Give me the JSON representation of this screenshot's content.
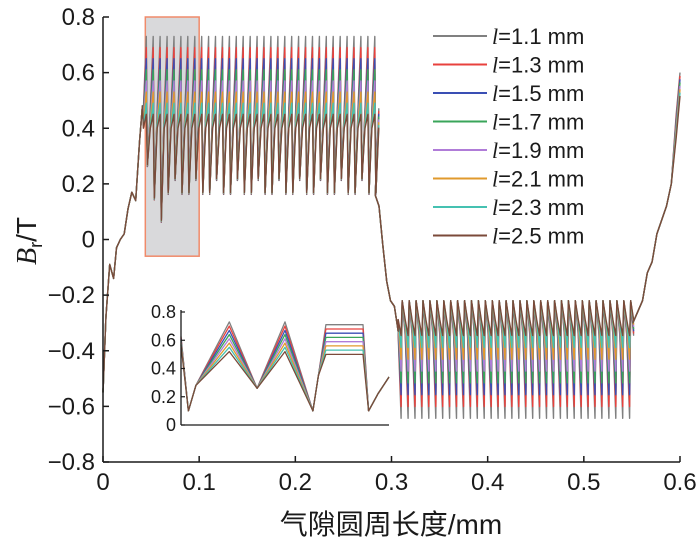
{
  "chart_data": {
    "type": "line",
    "title": "",
    "xlabel": "气隙圆周长度/mm",
    "ylabel_main": "B",
    "ylabel_sub": "r",
    "ylabel_unit": "/T",
    "xlim": [
      0,
      0.6
    ],
    "ylim": [
      -0.8,
      0.8
    ],
    "xticks": [
      0,
      0.1,
      0.2,
      0.3,
      0.4,
      0.5,
      0.6
    ],
    "xtick_labels": [
      "0",
      "0.1",
      "0.2",
      "0.3",
      "0.4",
      "0.5",
      "0.6"
    ],
    "yticks": [
      -0.8,
      -0.6,
      -0.4,
      -0.2,
      0,
      0.2,
      0.4,
      0.6,
      0.8
    ],
    "ytick_labels": [
      "−0.8",
      "−0.6",
      "−0.4",
      "−0.2",
      "0",
      "0.2",
      "0.4",
      "0.6",
      "0.8"
    ],
    "grid": false,
    "legend_position": "top-right",
    "series": [
      {
        "name": "l=1.1 mm",
        "var": "l",
        "text": "=1.1 mm",
        "color": "#808080",
        "dev": 0.26,
        "floor": 0.47
      },
      {
        "name": "l=1.3 mm",
        "var": "l",
        "text": "=1.3 mm",
        "color": "#e8413d",
        "dev": 0.23,
        "floor": 0.46
      },
      {
        "name": "l=1.5 mm",
        "var": "l",
        "text": "=1.5 mm",
        "color": "#3a4fb4",
        "dev": 0.2,
        "floor": 0.45
      },
      {
        "name": "l=1.7 mm",
        "var": "l",
        "text": "=1.7 mm",
        "color": "#3aa55a",
        "dev": 0.17,
        "floor": 0.44
      },
      {
        "name": "l=1.9 mm",
        "var": "l",
        "text": "=1.9 mm",
        "color": "#b07cd8",
        "dev": 0.14,
        "floor": 0.43
      },
      {
        "name": "l=2.1 mm",
        "var": "l",
        "text": "=2.1 mm",
        "color": "#e09a2c",
        "dev": 0.11,
        "floor": 0.42
      },
      {
        "name": "l=2.3 mm",
        "var": "l",
        "text": "=2.3 mm",
        "color": "#45c1b1",
        "dev": 0.08,
        "floor": 0.41
      },
      {
        "name": "l=2.5 mm",
        "var": "l",
        "text": "=2.5 mm",
        "color": "#7b4a3a",
        "dev": 0.05,
        "floor": 0.4
      }
    ],
    "base_curve": {
      "x": [
        0,
        0.003,
        0.007,
        0.011,
        0.014,
        0.018,
        0.022,
        0.026,
        0.03,
        0.034,
        0.038,
        0.041
      ],
      "y": [
        -0.55,
        -0.28,
        -0.09,
        -0.14,
        -0.03,
        0.0,
        0.02,
        0.11,
        0.17,
        0.14,
        0.35,
        0.48
      ]
    },
    "positive_slot": {
      "x_start": 0.042,
      "x_end": 0.283,
      "period": 0.0072,
      "plateau": 0.49,
      "dip": 0.16,
      "edge_values": [
        0.26,
        0.14,
        0.06
      ]
    },
    "negative_slot": {
      "x_start": 0.307,
      "x_end": 0.551,
      "period": 0.0072,
      "plateau": -0.36,
      "dip": -0.22
    },
    "tail_curve": {
      "x": [
        0.283,
        0.287,
        0.291,
        0.295,
        0.299,
        0.303,
        0.307
      ],
      "y": [
        0.16,
        0.12,
        -0.02,
        -0.15,
        -0.22,
        -0.24,
        -0.33
      ]
    },
    "end_curve": {
      "x": [
        0.551,
        0.556,
        0.561,
        0.566,
        0.571,
        0.576,
        0.581,
        0.586,
        0.591,
        0.596,
        0.6
      ],
      "y": [
        -0.3,
        -0.26,
        -0.22,
        -0.12,
        -0.08,
        0.02,
        0.07,
        0.12,
        0.2,
        0.45,
        0.6
      ]
    },
    "highlight_box": {
      "x_range": [
        0.044,
        0.1
      ],
      "y_range": [
        -0.06,
        0.8
      ]
    },
    "inset": {
      "xlim": [
        0.044,
        0.1
      ],
      "ylim": [
        0,
        0.8
      ],
      "yticks": [
        0,
        0.2,
        0.4,
        0.6,
        0.8
      ],
      "ytick_labels": [
        "0",
        "0.2",
        "0.4",
        "0.6",
        "0.8"
      ]
    }
  }
}
